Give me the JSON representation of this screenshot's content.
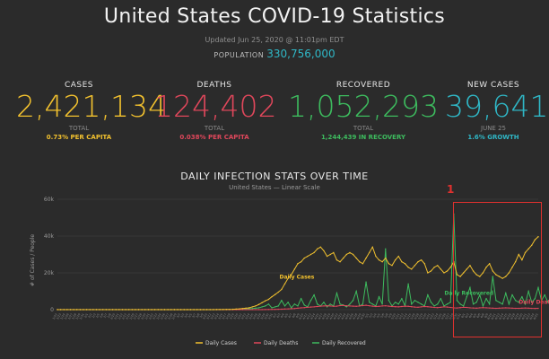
{
  "header": {
    "title": "United States COVID-19 Statistics",
    "updated": "Updated Jun 25, 2020 @ 11:01pm EDT",
    "population_label": "POPULATION",
    "population_value": "330,756,000"
  },
  "stats": {
    "cases": {
      "label": "CASES",
      "value": "2,421,134",
      "sub": "TOTAL",
      "detail": "0.73% PER CAPITA",
      "color": "#f2c12e"
    },
    "deaths": {
      "label": "DEATHS",
      "value": "124,402",
      "sub": "TOTAL",
      "detail": "0.038% PER CAPITA",
      "color": "#e0475b"
    },
    "recovered": {
      "label": "RECOVERED",
      "value": "1,052,293",
      "sub": "TOTAL",
      "detail": "1,244,439 IN RECOVERY",
      "color": "#3dbb5e"
    },
    "new_cases": {
      "label": "NEW CASES",
      "value": "39,641",
      "sub": "JUNE 25",
      "detail": "1.6% GROWTH",
      "color": "#2fb7c6"
    }
  },
  "annotation": {
    "number": "1"
  },
  "watermark": "",
  "chart_data": {
    "type": "line",
    "title": "DAILY INFECTION STATS OVER TIME",
    "subtitle": "United States — Linear Scale",
    "ylabel": "# of Cases / People",
    "ylim": [
      0,
      60000
    ],
    "yticks": [
      0,
      20000,
      40000,
      60000
    ],
    "ytick_labels": [
      "0",
      "20k",
      "40k",
      "60k"
    ],
    "grid": true,
    "legend_position": "bottom",
    "x_start": "2020-01-22",
    "x_end": "2020-06-25",
    "series": [
      {
        "name": "Daily Cases",
        "color": "#f2c12e",
        "inline_label": "Daily Cases",
        "values": [
          0,
          0,
          0,
          0,
          0,
          0,
          0,
          0,
          0,
          0,
          0,
          0,
          0,
          0,
          0,
          0,
          0,
          0,
          0,
          0,
          0,
          0,
          0,
          0,
          0,
          0,
          0,
          0,
          0,
          0,
          0,
          0,
          0,
          0,
          0,
          0,
          0,
          0,
          1,
          1,
          2,
          3,
          4,
          5,
          7,
          10,
          15,
          22,
          30,
          45,
          60,
          80,
          100,
          150,
          200,
          300,
          400,
          600,
          800,
          1000,
          1500,
          2000,
          2800,
          3800,
          4800,
          5600,
          7000,
          8200,
          9500,
          11000,
          14000,
          17000,
          19000,
          22000,
          25000,
          26000,
          28000,
          29000,
          30000,
          31000,
          33000,
          34000,
          32000,
          29000,
          30000,
          31000,
          27000,
          26000,
          28000,
          30000,
          31000,
          30000,
          28000,
          26000,
          25000,
          28000,
          31000,
          34000,
          29000,
          27000,
          26000,
          28000,
          25000,
          24000,
          27000,
          29000,
          26000,
          25000,
          23000,
          22000,
          24000,
          26000,
          27000,
          25000,
          20000,
          21000,
          23000,
          24000,
          22000,
          20000,
          21000,
          23000,
          26000,
          19000,
          18000,
          20000,
          22000,
          24000,
          21000,
          19000,
          18000,
          20000,
          23000,
          25000,
          21000,
          19000,
          18000,
          17000,
          18000,
          20000,
          23000,
          26000,
          30000,
          27000,
          31000,
          33000,
          35000,
          38000,
          39641
        ],
        "label_color": "#f2c12e"
      },
      {
        "name": "Daily Deaths",
        "color": "#e0475b",
        "inline_label": "Daily Deaths",
        "values": [
          0,
          0,
          0,
          0,
          0,
          0,
          0,
          0,
          0,
          0,
          0,
          0,
          0,
          0,
          0,
          0,
          0,
          0,
          0,
          0,
          0,
          0,
          0,
          0,
          0,
          0,
          0,
          0,
          0,
          0,
          0,
          0,
          0,
          0,
          0,
          0,
          0,
          0,
          0,
          0,
          0,
          0,
          0,
          0,
          0,
          0,
          0,
          0,
          0,
          0,
          0,
          0,
          0,
          0,
          0,
          1,
          2,
          3,
          5,
          8,
          10,
          15,
          20,
          30,
          50,
          80,
          100,
          150,
          200,
          250,
          350,
          400,
          500,
          600,
          800,
          1000,
          1100,
          1300,
          1400,
          1500,
          1700,
          1900,
          2000,
          2100,
          2000,
          1800,
          1900,
          2200,
          2300,
          2100,
          2000,
          1900,
          1800,
          2000,
          2200,
          2400,
          2100,
          1900,
          1700,
          1800,
          2000,
          2100,
          1900,
          1700,
          1600,
          1500,
          1700,
          1900,
          1800,
          1600,
          1400,
          1300,
          1500,
          1700,
          1600,
          1400,
          1200,
          1100,
          1300,
          1500,
          1400,
          1200,
          1000,
          900,
          1100,
          1300,
          1200,
          1000,
          900,
          800,
          1000,
          1100,
          1000,
          900,
          800,
          700,
          800,
          900,
          1000,
          900,
          800,
          700,
          700,
          800,
          900,
          800,
          700,
          650,
          700
        ],
        "label_color": "#e0475b"
      },
      {
        "name": "Daily Recovered",
        "color": "#3dbb5e",
        "inline_label": "Daily Recovered",
        "values": [
          0,
          0,
          0,
          0,
          0,
          0,
          0,
          0,
          0,
          0,
          0,
          0,
          0,
          0,
          0,
          0,
          0,
          0,
          0,
          0,
          0,
          0,
          0,
          0,
          0,
          0,
          0,
          0,
          0,
          0,
          0,
          0,
          0,
          0,
          0,
          0,
          0,
          0,
          0,
          0,
          0,
          0,
          0,
          0,
          0,
          0,
          0,
          0,
          0,
          0,
          0,
          0,
          0,
          0,
          0,
          0,
          100,
          200,
          300,
          500,
          600,
          800,
          1000,
          1500,
          2000,
          3000,
          1000,
          1500,
          2000,
          5000,
          2000,
          4000,
          1000,
          3000,
          2000,
          6000,
          2500,
          1500,
          5000,
          8000,
          3000,
          2000,
          4000,
          1500,
          3000,
          2000,
          9000,
          3000,
          2500,
          1500,
          3000,
          5000,
          10000,
          2000,
          3000,
          15000,
          4000,
          3000,
          2000,
          7000,
          3000,
          33000,
          5000,
          2000,
          4000,
          3000,
          6000,
          2000,
          14000,
          3000,
          5000,
          4000,
          3000,
          2000,
          8000,
          4000,
          2000,
          3000,
          6000,
          2000,
          3000,
          4000,
          52000,
          5000,
          3000,
          2000,
          7000,
          12000,
          3000,
          4000,
          8000,
          2000,
          6000,
          3000,
          18000,
          5000,
          4000,
          3000,
          9000,
          3000,
          8000,
          5000,
          4000,
          7000,
          3000,
          10000,
          4000,
          6000,
          12000,
          5000,
          8000,
          4000,
          7000,
          5000,
          9000,
          7000,
          6000,
          10000,
          8000,
          18000,
          3000,
          12000,
          2000
        ],
        "label_color": "#3dbb5e"
      }
    ],
    "x_tick_count": 126
  }
}
